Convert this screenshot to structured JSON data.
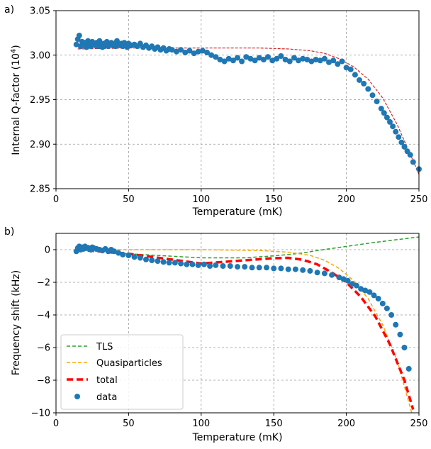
{
  "chart_data": [
    {
      "type": "scatter",
      "panel_label": "a)",
      "xlabel": "Temperature (mK)",
      "ylabel": "Internal Q-factor (10",
      "ylabel_sup": "4",
      "ylabel_end": ")",
      "xlim": [
        0,
        250
      ],
      "ylim": [
        2.85,
        3.05
      ],
      "xticks": [
        "0",
        "50",
        "100",
        "150",
        "200",
        "250"
      ],
      "yticks": [
        "2.85",
        "2.90",
        "2.95",
        "3.00",
        "3.05"
      ],
      "grid": true,
      "colors": {
        "data": "#1f77b4",
        "fit": "#d62728"
      },
      "series": [
        {
          "kind": "points",
          "x": [
            14,
            15,
            16,
            17,
            18,
            19,
            20,
            21,
            22,
            23,
            24,
            25,
            26,
            27,
            28,
            29,
            30,
            31,
            32,
            33,
            34,
            35,
            36,
            37,
            38,
            39,
            40,
            41,
            42,
            43,
            44,
            45,
            46,
            47,
            48,
            49,
            50,
            52,
            54,
            56,
            58,
            60,
            62,
            64,
            66,
            68,
            70,
            72,
            74,
            76,
            78,
            80,
            83,
            86,
            89,
            92,
            95,
            98,
            101,
            104,
            107,
            110,
            113,
            116,
            119,
            122,
            125,
            128,
            131,
            134,
            137,
            140,
            143,
            146,
            149,
            152,
            155,
            158,
            161,
            164,
            167,
            170,
            173,
            176,
            179,
            182,
            185,
            188,
            191,
            194,
            197,
            200,
            203,
            206,
            209,
            212,
            215,
            218,
            221,
            224,
            226,
            228,
            230,
            232,
            234,
            236,
            238,
            240,
            242,
            244,
            246,
            250
          ],
          "y": [
            3.012,
            3.018,
            3.022,
            3.01,
            3.015,
            3.011,
            3.014,
            3.009,
            3.016,
            3.012,
            3.01,
            3.015,
            3.013,
            3.011,
            3.014,
            3.01,
            3.016,
            3.012,
            3.009,
            3.013,
            3.011,
            3.015,
            3.01,
            3.012,
            3.014,
            3.011,
            3.013,
            3.01,
            3.016,
            3.012,
            3.011,
            3.013,
            3.01,
            3.014,
            3.012,
            3.009,
            3.013,
            3.011,
            3.012,
            3.01,
            3.013,
            3.009,
            3.011,
            3.008,
            3.01,
            3.007,
            3.009,
            3.006,
            3.008,
            3.005,
            3.007,
            3.006,
            3.004,
            3.006,
            3.003,
            3.005,
            3.002,
            3.004,
            3.005,
            3.003,
            3.0,
            2.998,
            2.995,
            2.993,
            2.996,
            2.994,
            2.997,
            2.993,
            2.998,
            2.996,
            2.994,
            2.997,
            2.995,
            2.998,
            2.994,
            2.996,
            2.999,
            2.995,
            2.993,
            2.997,
            2.994,
            2.996,
            2.995,
            2.993,
            2.995,
            2.994,
            2.996,
            2.992,
            2.994,
            2.99,
            2.993,
            2.986,
            2.984,
            2.978,
            2.972,
            2.968,
            2.962,
            2.955,
            2.948,
            2.94,
            2.935,
            2.93,
            2.925,
            2.92,
            2.914,
            2.908,
            2.902,
            2.897,
            2.892,
            2.888,
            2.88,
            2.872
          ]
        },
        {
          "kind": "curve",
          "x": [
            15,
            50,
            100,
            140,
            160,
            175,
            185,
            195,
            205,
            215,
            225,
            235,
            245,
            250
          ],
          "y": [
            3.007,
            3.008,
            3.008,
            3.008,
            3.007,
            3.005,
            3.002,
            2.996,
            2.987,
            2.973,
            2.952,
            2.922,
            2.885,
            2.866
          ]
        }
      ]
    },
    {
      "type": "line",
      "panel_label": "b)",
      "xlabel": "Temperature (mK)",
      "ylabel": "Frequency shift (kHz)",
      "xlim": [
        0,
        250
      ],
      "ylim": [
        -10,
        1
      ],
      "xticks": [
        "0",
        "50",
        "100",
        "150",
        "200",
        "250"
      ],
      "yticks": [
        "−10",
        "−8",
        "−6",
        "−4",
        "−2",
        "0"
      ],
      "ytick_values": [
        -10,
        -8,
        -6,
        -4,
        -2,
        0
      ],
      "grid": true,
      "legend": "lower-left",
      "series": [
        {
          "name": "TLS",
          "color": "#2ca02c",
          "x": [
            15,
            50,
            100,
            130,
            150,
            160,
            170,
            180,
            200,
            220,
            250
          ],
          "y": [
            0.0,
            -0.25,
            -0.5,
            -0.5,
            -0.38,
            -0.3,
            -0.2,
            -0.05,
            0.2,
            0.45,
            0.78
          ]
        },
        {
          "name": "Quasiparticles",
          "color": "#ffa500",
          "x": [
            15,
            50,
            100,
            140,
            160,
            175,
            185,
            195,
            205,
            215,
            225,
            235,
            245
          ],
          "y": [
            0.0,
            0.0,
            0.0,
            -0.05,
            -0.15,
            -0.35,
            -0.65,
            -1.15,
            -1.9,
            -3.0,
            -4.6,
            -6.8,
            -10.0
          ]
        },
        {
          "name": "total",
          "color": "#ff0000",
          "x": [
            15,
            50,
            100,
            130,
            150,
            160,
            170,
            180,
            190,
            200,
            210,
            220,
            230,
            240,
            246
          ],
          "y": [
            0.0,
            -0.25,
            -0.85,
            -0.65,
            -0.52,
            -0.5,
            -0.62,
            -0.9,
            -1.4,
            -2.0,
            -2.9,
            -4.1,
            -5.8,
            -8.0,
            -9.8
          ]
        },
        {
          "name": "data",
          "color": "#1f77b4",
          "kind": "points",
          "x": [
            14,
            15,
            16,
            17,
            18,
            19,
            20,
            21,
            22,
            23,
            24,
            25,
            26,
            28,
            30,
            32,
            34,
            36,
            38,
            40,
            43,
            46,
            50,
            54,
            58,
            62,
            66,
            70,
            74,
            78,
            82,
            86,
            90,
            94,
            98,
            102,
            106,
            110,
            115,
            120,
            125,
            130,
            135,
            140,
            145,
            150,
            155,
            160,
            165,
            170,
            175,
            180,
            185,
            190,
            195,
            198,
            201,
            204,
            207,
            210,
            213,
            216,
            219,
            222,
            225,
            228,
            231,
            234,
            237,
            240,
            243
          ],
          "y": [
            -0.1,
            0.1,
            0.2,
            0.0,
            0.15,
            0.05,
            0.2,
            0.1,
            0.12,
            0.05,
            0.0,
            0.15,
            0.1,
            0.05,
            0.0,
            -0.05,
            0.05,
            -0.1,
            0.0,
            -0.1,
            -0.2,
            -0.3,
            -0.35,
            -0.45,
            -0.5,
            -0.6,
            -0.65,
            -0.7,
            -0.75,
            -0.8,
            -0.8,
            -0.85,
            -0.9,
            -0.9,
            -0.95,
            -0.9,
            -1.0,
            -0.95,
            -1.0,
            -1.0,
            -1.05,
            -1.05,
            -1.1,
            -1.1,
            -1.1,
            -1.15,
            -1.15,
            -1.2,
            -1.2,
            -1.25,
            -1.3,
            -1.4,
            -1.45,
            -1.55,
            -1.7,
            -1.8,
            -1.9,
            -2.1,
            -2.2,
            -2.4,
            -2.5,
            -2.6,
            -2.8,
            -3.0,
            -3.3,
            -3.6,
            -4.0,
            -4.6,
            -5.2,
            -6.0,
            -7.3
          ]
        }
      ]
    }
  ]
}
